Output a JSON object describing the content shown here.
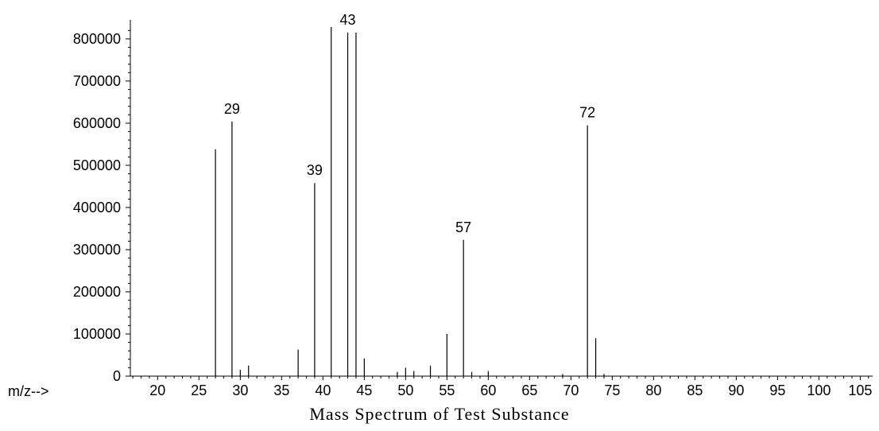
{
  "chart_data": {
    "type": "bar",
    "title": "Mass Spectrum of Test Substance",
    "xlabel": "m/z-->",
    "ylabel": "",
    "xlim": [
      16.7,
      106.5
    ],
    "ylim": [
      0,
      830000
    ],
    "x_ticks": [
      20,
      25,
      30,
      35,
      40,
      45,
      50,
      55,
      60,
      65,
      70,
      75,
      80,
      85,
      90,
      95,
      100,
      105
    ],
    "y_ticks": [
      0,
      100000,
      200000,
      300000,
      400000,
      500000,
      600000,
      700000,
      800000
    ],
    "grid": false,
    "legend": "none",
    "peak_labels": [
      {
        "x": 29,
        "text": "29"
      },
      {
        "x": 39,
        "text": "39"
      },
      {
        "x": 43,
        "text": "43"
      },
      {
        "x": 57,
        "text": "57"
      },
      {
        "x": 72,
        "text": "72"
      }
    ],
    "series": [
      {
        "x": [
          27,
          29,
          30,
          31,
          37,
          39,
          41,
          43,
          44,
          45,
          49,
          50,
          51,
          53,
          55,
          57,
          58,
          60,
          69,
          72,
          73,
          74
        ],
        "values": [
          538000,
          604000,
          15000,
          25000,
          63000,
          458000,
          828000,
          815000,
          815000,
          42000,
          10000,
          20000,
          12000,
          25000,
          100000,
          323000,
          10000,
          12000,
          5000,
          595000,
          90000,
          5000
        ]
      }
    ]
  }
}
